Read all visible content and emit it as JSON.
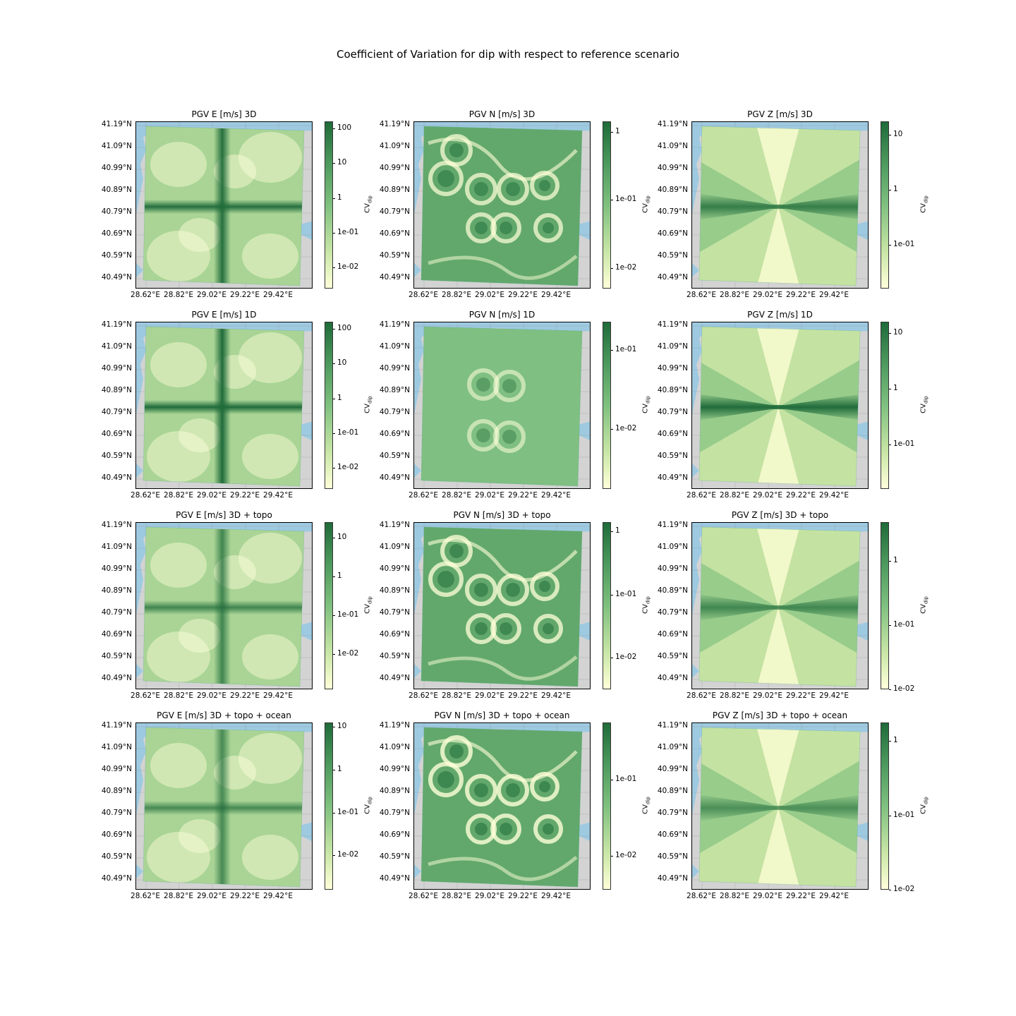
{
  "suptitle": "Coefficient of Variation for dip with respect to reference scenario",
  "chart_data": {
    "type": "heatmap",
    "colormap": "YlGn",
    "colorbar_scale": "log",
    "colorbar_label": "CV_dip",
    "colors": {
      "ocean": "#9ecae1",
      "land": "#d3d3d3",
      "cmap_low": "#ffffd9",
      "cmap_mid": "#7fc07f",
      "cmap_high": "#1f6b3a"
    },
    "lat_ticks": [
      "41.19°N",
      "41.09°N",
      "40.99°N",
      "40.89°N",
      "40.79°N",
      "40.69°N",
      "40.59°N",
      "40.49°N"
    ],
    "lon_ticks": [
      "28.62°E",
      "28.82°E",
      "29.02°E",
      "29.22°E",
      "29.42°E"
    ],
    "panels": [
      {
        "title": "PGV E [m/s] 3D",
        "pattern": "E",
        "intensity": 1.0,
        "colorbar_ticks": [
          "100",
          "10",
          "1",
          "1e-01",
          "1e-02"
        ],
        "cb_exp_max": 2.2,
        "cb_exp_min": -2.6
      },
      {
        "title": "PGV N [m/s] 3D",
        "pattern": "N",
        "intensity": 0.9,
        "colorbar_ticks": [
          "1",
          "1e-01",
          "1e-02"
        ],
        "cb_exp_max": 0.15,
        "cb_exp_min": -2.3
      },
      {
        "title": "PGV Z [m/s] 3D",
        "pattern": "Z",
        "intensity": 0.9,
        "colorbar_ticks": [
          "10",
          "1",
          "1e-01"
        ],
        "cb_exp_max": 1.25,
        "cb_exp_min": -1.8
      },
      {
        "title": "PGV E [m/s] 1D",
        "pattern": "E",
        "intensity": 1.1,
        "colorbar_ticks": [
          "100",
          "10",
          "1",
          "1e-01",
          "1e-02"
        ],
        "cb_exp_max": 2.2,
        "cb_exp_min": -2.6
      },
      {
        "title": "PGV N [m/s] 1D",
        "pattern": "N1",
        "intensity": 0.7,
        "colorbar_ticks": [
          "1e-01",
          "1e-02"
        ],
        "cb_exp_max": -0.65,
        "cb_exp_min": -2.75
      },
      {
        "title": "PGV Z [m/s] 1D",
        "pattern": "Z",
        "intensity": 1.1,
        "colorbar_ticks": [
          "10",
          "1",
          "1e-01"
        ],
        "cb_exp_max": 1.2,
        "cb_exp_min": -1.8
      },
      {
        "title": "PGV E [m/s] 3D + topo",
        "pattern": "E",
        "intensity": 0.8,
        "colorbar_ticks": [
          "10",
          "1",
          "1e-01",
          "1e-02"
        ],
        "cb_exp_max": 1.4,
        "cb_exp_min": -2.9
      },
      {
        "title": "PGV N [m/s] 3D + topo",
        "pattern": "N",
        "intensity": 0.95,
        "colorbar_ticks": [
          "1",
          "1e-01",
          "1e-02"
        ],
        "cb_exp_max": 0.15,
        "cb_exp_min": -2.5
      },
      {
        "title": "PGV Z [m/s] 3D + topo",
        "pattern": "Z",
        "intensity": 0.8,
        "colorbar_ticks": [
          "1",
          "1e-01",
          "1e-02"
        ],
        "cb_exp_max": 0.6,
        "cb_exp_min": -2.0
      },
      {
        "title": "PGV E [m/s] 3D + topo + ocean",
        "pattern": "E",
        "intensity": 0.75,
        "colorbar_ticks": [
          "10",
          "1",
          "1e-01",
          "1e-02"
        ],
        "cb_exp_max": 1.1,
        "cb_exp_min": -2.8
      },
      {
        "title": "PGV N [m/s] 3D + topo + ocean",
        "pattern": "N",
        "intensity": 1.0,
        "colorbar_ticks": [
          "1e-01",
          "1e-02"
        ],
        "cb_exp_max": -0.25,
        "cb_exp_min": -2.45
      },
      {
        "title": "PGV Z [m/s] 3D + topo + ocean",
        "pattern": "Z",
        "intensity": 0.7,
        "colorbar_ticks": [
          "1",
          "1e-01",
          "1e-02"
        ],
        "cb_exp_max": 0.25,
        "cb_exp_min": -2.0
      }
    ]
  }
}
